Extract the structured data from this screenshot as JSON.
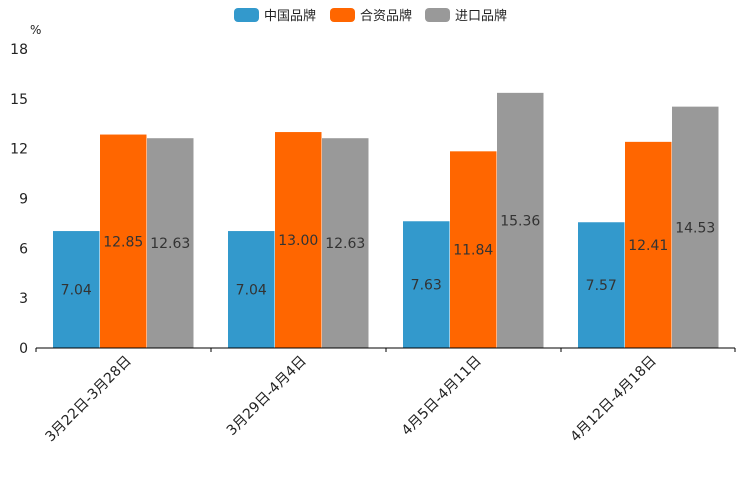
{
  "chart_data": {
    "type": "bar",
    "title": "",
    "unit": "%",
    "xlabel": "",
    "ylabel": "%",
    "ylim": [
      0,
      18
    ],
    "yticks": [
      0,
      3,
      6,
      9,
      12,
      15,
      18
    ],
    "grid": false,
    "legend_position": "top-center",
    "categories": [
      "3月22日-3月28日",
      "3月29日-4月4日",
      "4月5日-4月11日",
      "4月12日-4月18日"
    ],
    "series": [
      {
        "name": "中国品牌",
        "color": "#3399cc",
        "values": [
          7.04,
          7.04,
          7.63,
          7.57
        ],
        "labels": [
          "7.04",
          "7.04",
          "7.63",
          "7.57"
        ]
      },
      {
        "name": "合资品牌",
        "color": "#ff6600",
        "values": [
          12.85,
          13.0,
          11.84,
          12.41
        ],
        "labels": [
          "12.85",
          "13.00",
          "11.84",
          "12.41"
        ]
      },
      {
        "name": "进口品牌",
        "color": "#999999",
        "values": [
          12.63,
          12.63,
          15.36,
          14.53
        ],
        "labels": [
          "12.63",
          "12.63",
          "15.36",
          "14.53"
        ]
      }
    ]
  }
}
